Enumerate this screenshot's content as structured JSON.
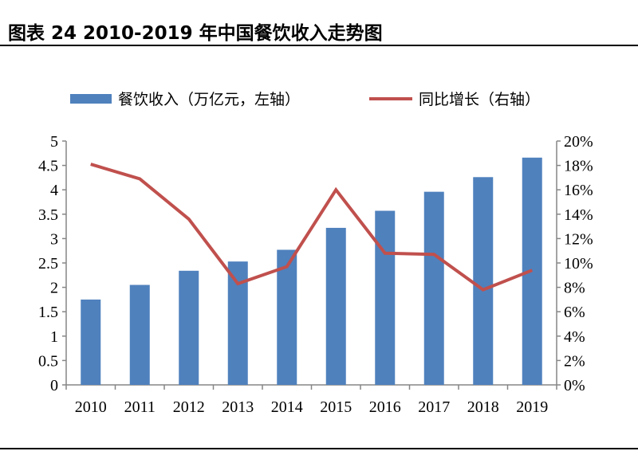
{
  "title": "图表 24 2010-2019 年中国餐饮收入走势图",
  "chart_data": {
    "type": "bar+line",
    "title": "图表 24 2010-2019 年中国餐饮收入走势图",
    "categories": [
      "2010",
      "2011",
      "2012",
      "2013",
      "2014",
      "2015",
      "2016",
      "2017",
      "2018",
      "2019"
    ],
    "series": [
      {
        "name": "餐饮收入（万亿元，左轴）",
        "type": "bar",
        "axis": "left",
        "color": "#4F81BD",
        "values": [
          1.75,
          2.05,
          2.34,
          2.53,
          2.77,
          3.22,
          3.57,
          3.96,
          4.26,
          4.66
        ]
      },
      {
        "name": "同比增长（右轴）",
        "type": "line",
        "axis": "right",
        "color": "#C0504D",
        "values": [
          18.1,
          16.9,
          13.6,
          8.3,
          9.7,
          16.0,
          10.8,
          10.7,
          7.8,
          9.4
        ]
      }
    ],
    "y_left": {
      "range": [
        0,
        5
      ],
      "ticks": [
        "0",
        "0.5",
        "1",
        "1.5",
        "2",
        "2.5",
        "3",
        "3.5",
        "4",
        "4.5",
        "5"
      ]
    },
    "y_right": {
      "range": [
        0,
        20
      ],
      "ticks": [
        "0%",
        "2%",
        "4%",
        "6%",
        "8%",
        "10%",
        "12%",
        "14%",
        "16%",
        "18%",
        "20%"
      ]
    },
    "grid": false,
    "legend": "top"
  }
}
